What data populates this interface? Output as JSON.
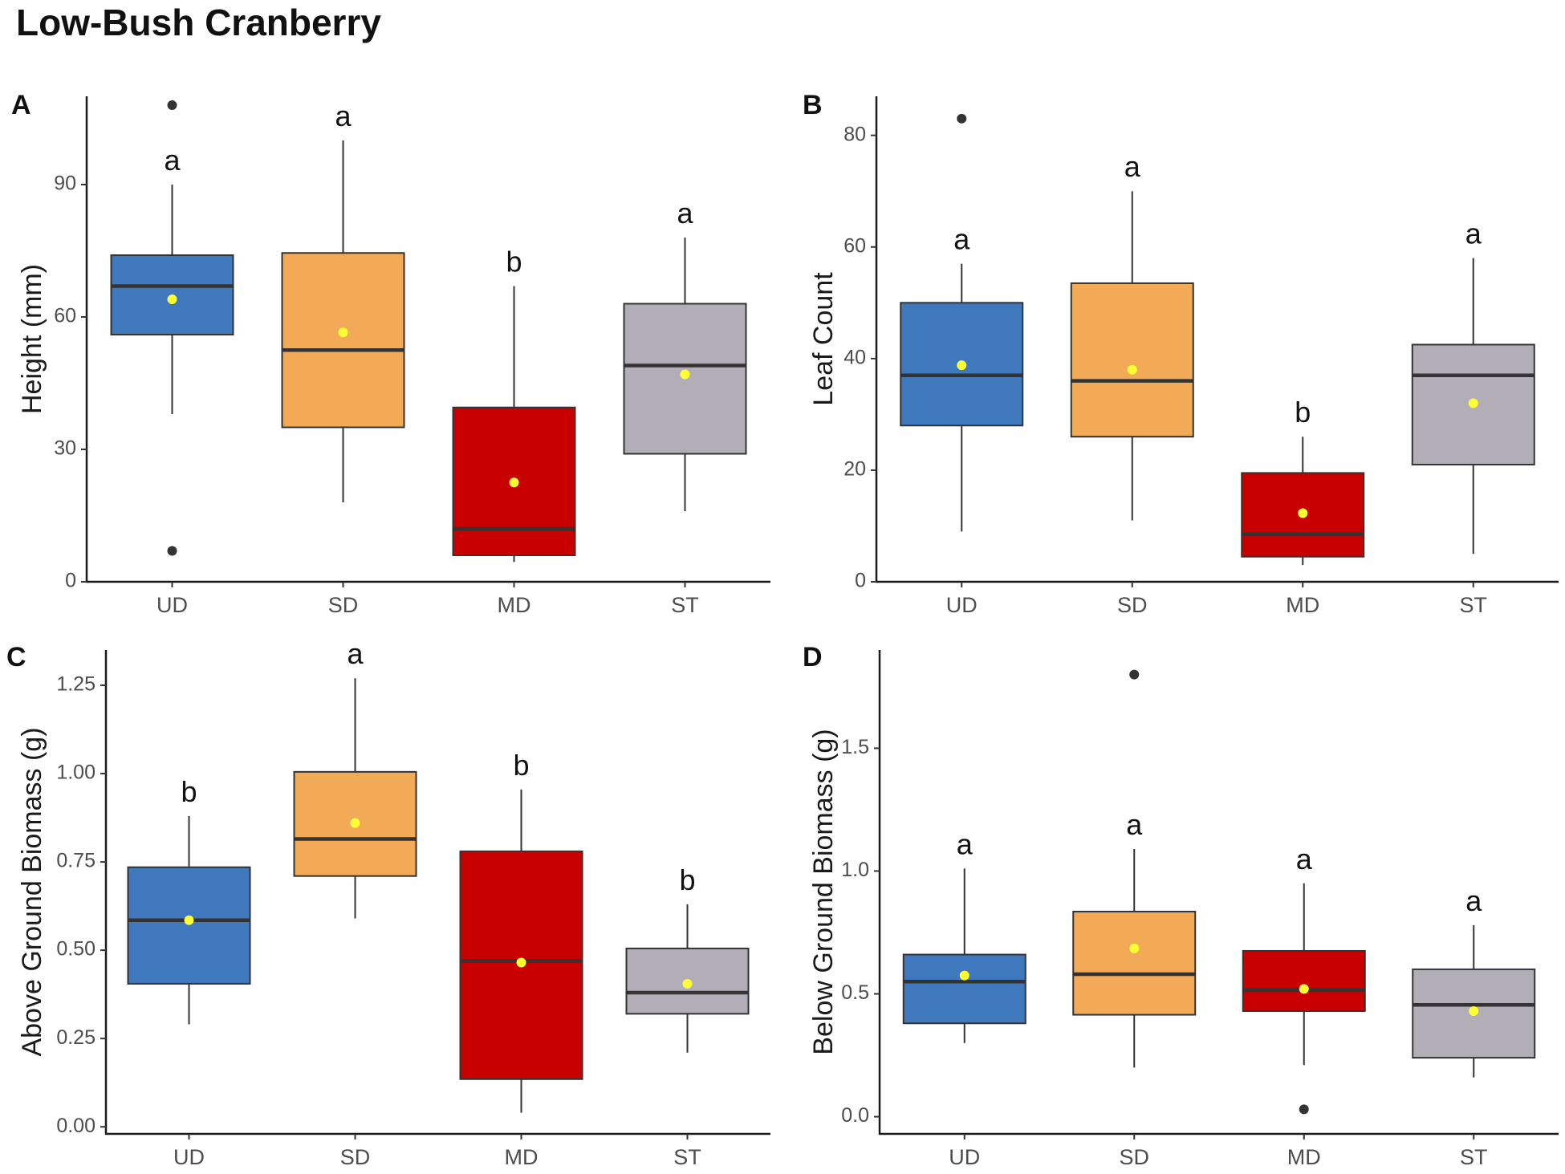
{
  "title": "Low-Bush Cranberry",
  "colors": {
    "UD": "#3f78bd",
    "SD": "#f2aa57",
    "MD": "#c90000",
    "ST": "#b2aeb8",
    "mean": "#ffff33",
    "outlier": "#333333"
  },
  "chart_data": [
    {
      "panel": "A",
      "type": "boxplot",
      "ylabel": "Height (mm)",
      "xlabel": "",
      "ylim": [
        0,
        110
      ],
      "yticks": [
        0,
        30,
        60,
        90
      ],
      "categories": [
        "UD",
        "SD",
        "MD",
        "ST"
      ],
      "boxes": [
        {
          "group": "UD",
          "whisker_low": 38,
          "q1": 56,
          "median": 67,
          "q3": 74,
          "whisker_high": 90,
          "mean": 64,
          "outliers": [
            108,
            7
          ],
          "letter": "a"
        },
        {
          "group": "SD",
          "whisker_low": 18,
          "q1": 35,
          "median": 52.5,
          "q3": 74.5,
          "whisker_high": 100,
          "mean": 56.5,
          "outliers": [],
          "letter": "a"
        },
        {
          "group": "MD",
          "whisker_low": 4.5,
          "q1": 6,
          "median": 12,
          "q3": 39.5,
          "whisker_high": 67,
          "mean": 22.5,
          "outliers": [],
          "letter": "b"
        },
        {
          "group": "ST",
          "whisker_low": 16,
          "q1": 29,
          "median": 49,
          "q3": 63,
          "whisker_high": 78,
          "mean": 47,
          "outliers": [],
          "letter": "a"
        }
      ]
    },
    {
      "panel": "B",
      "type": "boxplot",
      "ylabel": "Leaf Count",
      "xlabel": "",
      "ylim": [
        0,
        87
      ],
      "yticks": [
        0,
        20,
        40,
        60,
        80
      ],
      "categories": [
        "UD",
        "SD",
        "MD",
        "ST"
      ],
      "boxes": [
        {
          "group": "UD",
          "whisker_low": 9,
          "q1": 28,
          "median": 37,
          "q3": 50,
          "whisker_high": 57,
          "mean": 38.8,
          "outliers": [
            83
          ],
          "letter": "a"
        },
        {
          "group": "SD",
          "whisker_low": 11,
          "q1": 26,
          "median": 36,
          "q3": 53.5,
          "whisker_high": 70,
          "mean": 38,
          "outliers": [],
          "letter": "a"
        },
        {
          "group": "MD",
          "whisker_low": 3,
          "q1": 4.5,
          "median": 8.5,
          "q3": 19.5,
          "whisker_high": 26,
          "mean": 12.3,
          "outliers": [],
          "letter": "b"
        },
        {
          "group": "ST",
          "whisker_low": 5,
          "q1": 21,
          "median": 37,
          "q3": 42.5,
          "whisker_high": 58,
          "mean": 32,
          "outliers": [],
          "letter": "a"
        }
      ]
    },
    {
      "panel": "C",
      "type": "boxplot",
      "ylabel": "Above Ground Biomass (g)",
      "xlabel": "",
      "ylim": [
        -0.02,
        1.35
      ],
      "yticks": [
        "0.00",
        "0.25",
        "0.50",
        "0.75",
        "1.00",
        "1.25"
      ],
      "categories": [
        "UD",
        "SD",
        "MD",
        "ST"
      ],
      "boxes": [
        {
          "group": "UD",
          "whisker_low": 0.29,
          "q1": 0.405,
          "median": 0.585,
          "q3": 0.735,
          "whisker_high": 0.88,
          "mean": 0.585,
          "outliers": [],
          "letter": "b"
        },
        {
          "group": "SD",
          "whisker_low": 0.59,
          "q1": 0.71,
          "median": 0.815,
          "q3": 1.005,
          "whisker_high": 1.27,
          "mean": 0.86,
          "outliers": [],
          "letter": "a"
        },
        {
          "group": "MD",
          "whisker_low": 0.04,
          "q1": 0.135,
          "median": 0.47,
          "q3": 0.78,
          "whisker_high": 0.955,
          "mean": 0.465,
          "outliers": [],
          "letter": "b"
        },
        {
          "group": "ST",
          "whisker_low": 0.21,
          "q1": 0.32,
          "median": 0.38,
          "q3": 0.505,
          "whisker_high": 0.63,
          "mean": 0.405,
          "outliers": [],
          "letter": "b"
        }
      ]
    },
    {
      "panel": "D",
      "type": "boxplot",
      "ylabel": "Below Ground Biomass (g)",
      "xlabel": "",
      "ylim": [
        -0.07,
        1.9
      ],
      "yticks": [
        "0.0",
        "0.5",
        "1.0",
        "1.5"
      ],
      "categories": [
        "UD",
        "SD",
        "MD",
        "ST"
      ],
      "boxes": [
        {
          "group": "UD",
          "whisker_low": 0.3,
          "q1": 0.38,
          "median": 0.55,
          "q3": 0.66,
          "whisker_high": 1.01,
          "mean": 0.575,
          "outliers": [],
          "letter": "a"
        },
        {
          "group": "SD",
          "whisker_low": 0.2,
          "q1": 0.415,
          "median": 0.58,
          "q3": 0.835,
          "whisker_high": 1.09,
          "mean": 0.685,
          "outliers": [
            1.8
          ],
          "letter": "a"
        },
        {
          "group": "MD",
          "whisker_low": 0.21,
          "q1": 0.43,
          "median": 0.515,
          "q3": 0.675,
          "whisker_high": 0.95,
          "mean": 0.52,
          "outliers": [
            0.03
          ],
          "letter": "a"
        },
        {
          "group": "ST",
          "whisker_low": 0.16,
          "q1": 0.24,
          "median": 0.455,
          "q3": 0.6,
          "whisker_high": 0.78,
          "mean": 0.43,
          "outliers": [],
          "letter": "a"
        }
      ]
    }
  ]
}
